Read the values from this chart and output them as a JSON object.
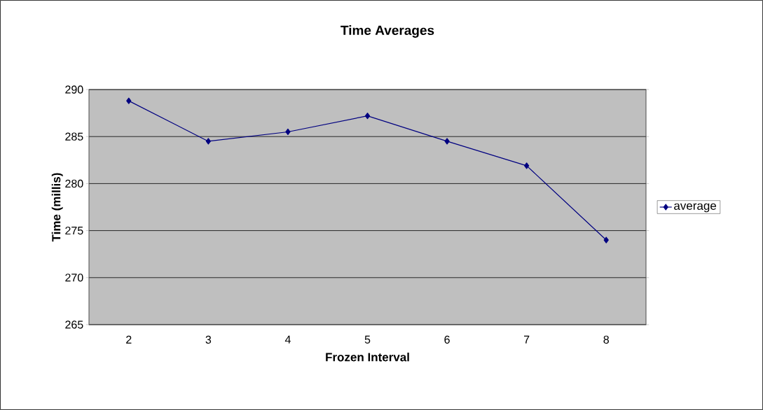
{
  "chart_data": {
    "type": "line",
    "title": "Time Averages",
    "xlabel": "Frozen Interval",
    "ylabel": "Time (millis)",
    "categories": [
      "2",
      "3",
      "4",
      "5",
      "6",
      "7",
      "8"
    ],
    "series": [
      {
        "name": "average",
        "color": "#000080",
        "values": [
          288.8,
          284.5,
          285.5,
          287.2,
          284.5,
          281.9,
          274.0
        ]
      }
    ],
    "ylim": [
      265,
      290
    ],
    "yticks": [
      265,
      270,
      275,
      280,
      285,
      290
    ],
    "grid": "y",
    "legend": "right",
    "marker": "diamond",
    "line_style": "solid"
  }
}
